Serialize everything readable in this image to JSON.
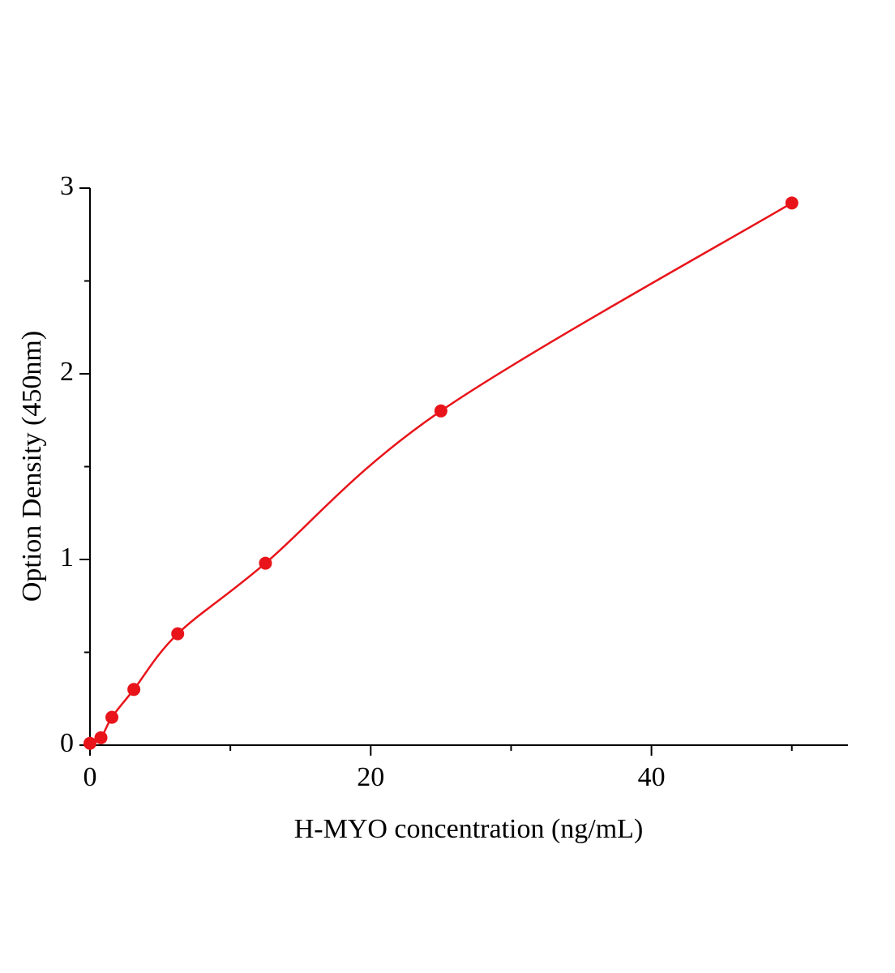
{
  "chart_data": {
    "type": "line",
    "x_label": "H-MYO concentration (ng/mL)",
    "y_label": "Option Density (450nm)",
    "series": [
      {
        "color": "#e8141a",
        "x": [
          0,
          0.78,
          1.56,
          3.125,
          6.25,
          12.5,
          25,
          50
        ],
        "values": [
          0.01,
          0.04,
          0.15,
          0.3,
          0.6,
          0.98,
          1.8,
          2.92
        ]
      }
    ],
    "markers": true,
    "xlim": [
      0,
      54
    ],
    "xticks": [
      0,
      20,
      40
    ],
    "xminorticks": [
      10,
      30,
      50
    ],
    "ylim": [
      0,
      3
    ],
    "yticks": [
      0,
      1,
      2,
      3
    ],
    "yminorticks": [
      0.5,
      1.5,
      2.5
    ]
  }
}
